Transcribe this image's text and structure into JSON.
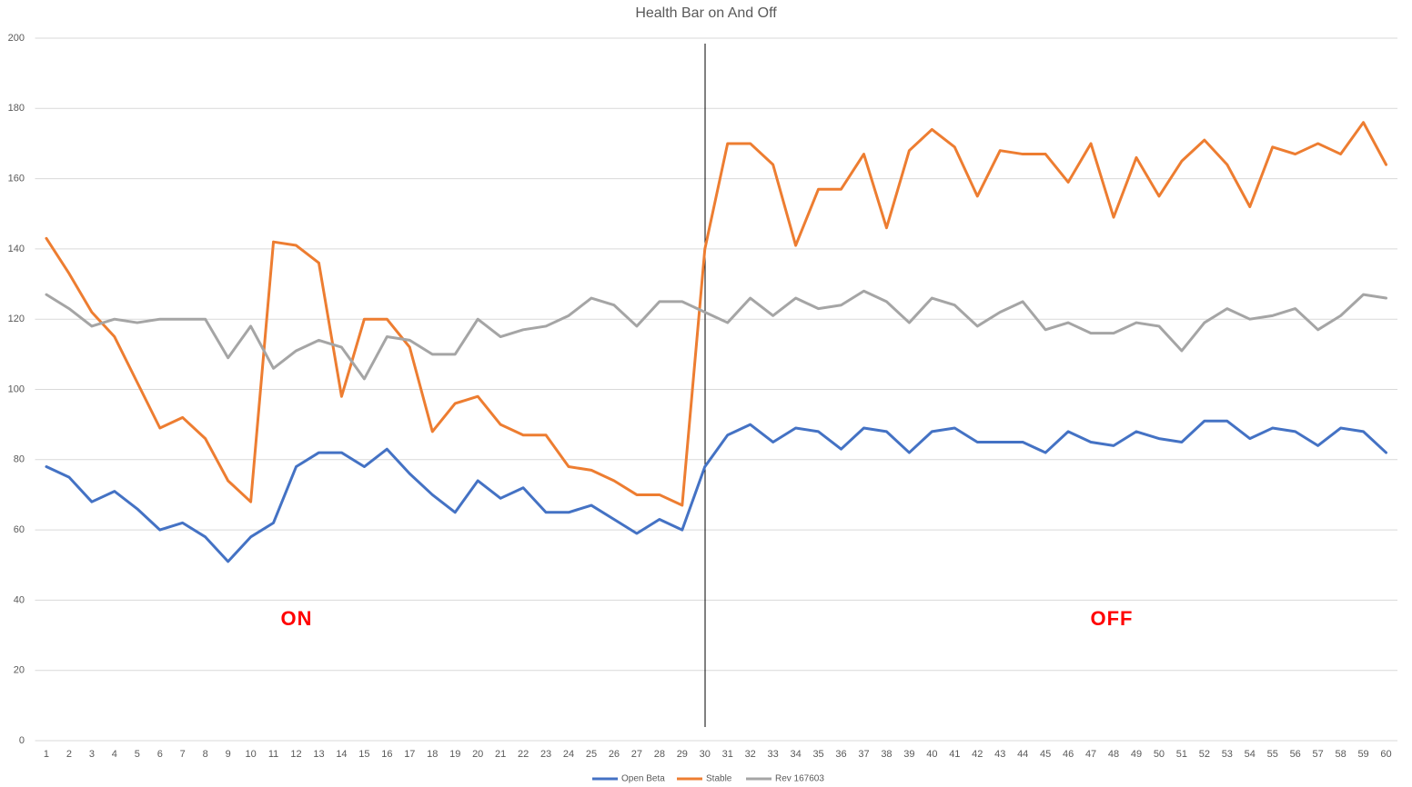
{
  "chart_data": {
    "type": "line",
    "title": "Health Bar on And Off",
    "categories": [
      1,
      2,
      3,
      4,
      5,
      6,
      7,
      8,
      9,
      10,
      11,
      12,
      13,
      14,
      15,
      16,
      17,
      18,
      19,
      20,
      21,
      22,
      23,
      24,
      25,
      26,
      27,
      28,
      29,
      30,
      31,
      32,
      33,
      34,
      35,
      36,
      37,
      38,
      39,
      40,
      41,
      42,
      43,
      44,
      45,
      46,
      47,
      48,
      49,
      50,
      51,
      52,
      53,
      54,
      55,
      56,
      57,
      58,
      59,
      60
    ],
    "series": [
      {
        "name": "Open Beta",
        "color": "#4472c4",
        "values": [
          78,
          75,
          68,
          71,
          66,
          60,
          62,
          58,
          51,
          58,
          62,
          78,
          82,
          82,
          78,
          83,
          76,
          70,
          65,
          74,
          69,
          72,
          65,
          65,
          67,
          63,
          59,
          63,
          60,
          78,
          87,
          90,
          85,
          89,
          88,
          83,
          89,
          88,
          82,
          88,
          89,
          85,
          85,
          85,
          82,
          88,
          85,
          84,
          88,
          86,
          85,
          91,
          91,
          86,
          89,
          88,
          84,
          89,
          88,
          82
        ]
      },
      {
        "name": "Stable",
        "color": "#ed7d31",
        "values": [
          143,
          133,
          122,
          115,
          102,
          89,
          92,
          86,
          74,
          68,
          142,
          141,
          136,
          98,
          120,
          120,
          112,
          88,
          96,
          98,
          90,
          87,
          87,
          78,
          77,
          74,
          70,
          70,
          67,
          140,
          170,
          170,
          164,
          141,
          157,
          157,
          167,
          146,
          168,
          174,
          169,
          155,
          168,
          167,
          167,
          159,
          170,
          149,
          166,
          155,
          165,
          171,
          164,
          152,
          169,
          167,
          170,
          167,
          176,
          164
        ]
      },
      {
        "name": "Rev 167603",
        "color": "#a5a5a5",
        "values": [
          127,
          123,
          118,
          120,
          119,
          120,
          120,
          120,
          109,
          118,
          106,
          111,
          114,
          112,
          103,
          115,
          114,
          110,
          110,
          120,
          115,
          117,
          118,
          121,
          126,
          124,
          118,
          125,
          125,
          122,
          119,
          126,
          121,
          126,
          123,
          124,
          128,
          125,
          119,
          126,
          124,
          118,
          122,
          125,
          117,
          119,
          116,
          116,
          119,
          118,
          111,
          119,
          123,
          120,
          121,
          123,
          117,
          121,
          127,
          126
        ]
      }
    ],
    "ylim": [
      0,
      200
    ],
    "yticks": [
      0,
      20,
      40,
      60,
      80,
      100,
      120,
      140,
      160,
      180,
      200
    ],
    "grid": true,
    "legend": "bottom",
    "annotations": [
      "ON",
      "OFF"
    ]
  }
}
